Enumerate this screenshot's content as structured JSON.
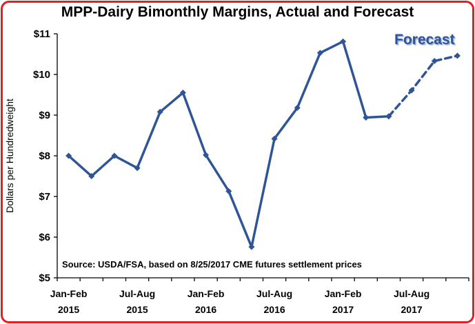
{
  "chart_data": {
    "type": "line",
    "title": "MPP-Dairy Bimonthly Margins, Actual and Forecast",
    "ylabel": "Dollars per Hundredweight",
    "xlabel": "",
    "ylim": [
      5,
      11
    ],
    "y_ticks": [
      "$5",
      "$6",
      "$7",
      "$8",
      "$9",
      "$10",
      "$11"
    ],
    "y_tick_values": [
      5,
      6,
      7,
      8,
      9,
      10,
      11
    ],
    "x": [
      "Jan-Feb 2015",
      "Mar-Apr 2015",
      "May-Jun 2015",
      "Jul-Aug 2015",
      "Sep-Oct 2015",
      "Nov-Dec 2015",
      "Jan-Feb 2016",
      "Mar-Apr 2016",
      "May-Jun 2016",
      "Jul-Aug 2016",
      "Sep-Oct 2016",
      "Nov-Dec 2016",
      "Jan-Feb 2017",
      "Mar-Apr 2017",
      "May-Jun 2017",
      "Jul-Aug 2017",
      "Sep-Oct 2017",
      "Nov-Dec 2017"
    ],
    "x_tick_labels": [
      {
        "index": 0,
        "line1": "Jan-Feb",
        "line2": "2015"
      },
      {
        "index": 3,
        "line1": "Jul-Aug",
        "line2": "2015"
      },
      {
        "index": 6,
        "line1": "Jan-Feb",
        "line2": "2016"
      },
      {
        "index": 9,
        "line1": "Jul-Aug",
        "line2": "2016"
      },
      {
        "index": 12,
        "line1": "Jan-Feb",
        "line2": "2017"
      },
      {
        "index": 15,
        "line1": "Jul-Aug",
        "line2": "2017"
      }
    ],
    "series": [
      {
        "name": "Actual",
        "style": "solid",
        "values": [
          8.0,
          7.5,
          8.0,
          7.7,
          9.08,
          9.55,
          8.02,
          7.13,
          5.76,
          8.42,
          9.18,
          10.53,
          10.81,
          8.94,
          8.97,
          null,
          null,
          null
        ]
      },
      {
        "name": "Forecast",
        "style": "dashed",
        "values": [
          null,
          null,
          null,
          null,
          null,
          null,
          null,
          null,
          null,
          null,
          null,
          null,
          null,
          null,
          8.97,
          9.61,
          10.33,
          10.46
        ]
      }
    ],
    "line_color": "#2f5597",
    "border_color": "#e41e1e",
    "grid": false,
    "legend": "none",
    "annotations": {
      "forecast_label": "Forecast",
      "source": "Source:  USDA/FSA, based on 8/25/2017 CME futures settlement prices"
    }
  }
}
